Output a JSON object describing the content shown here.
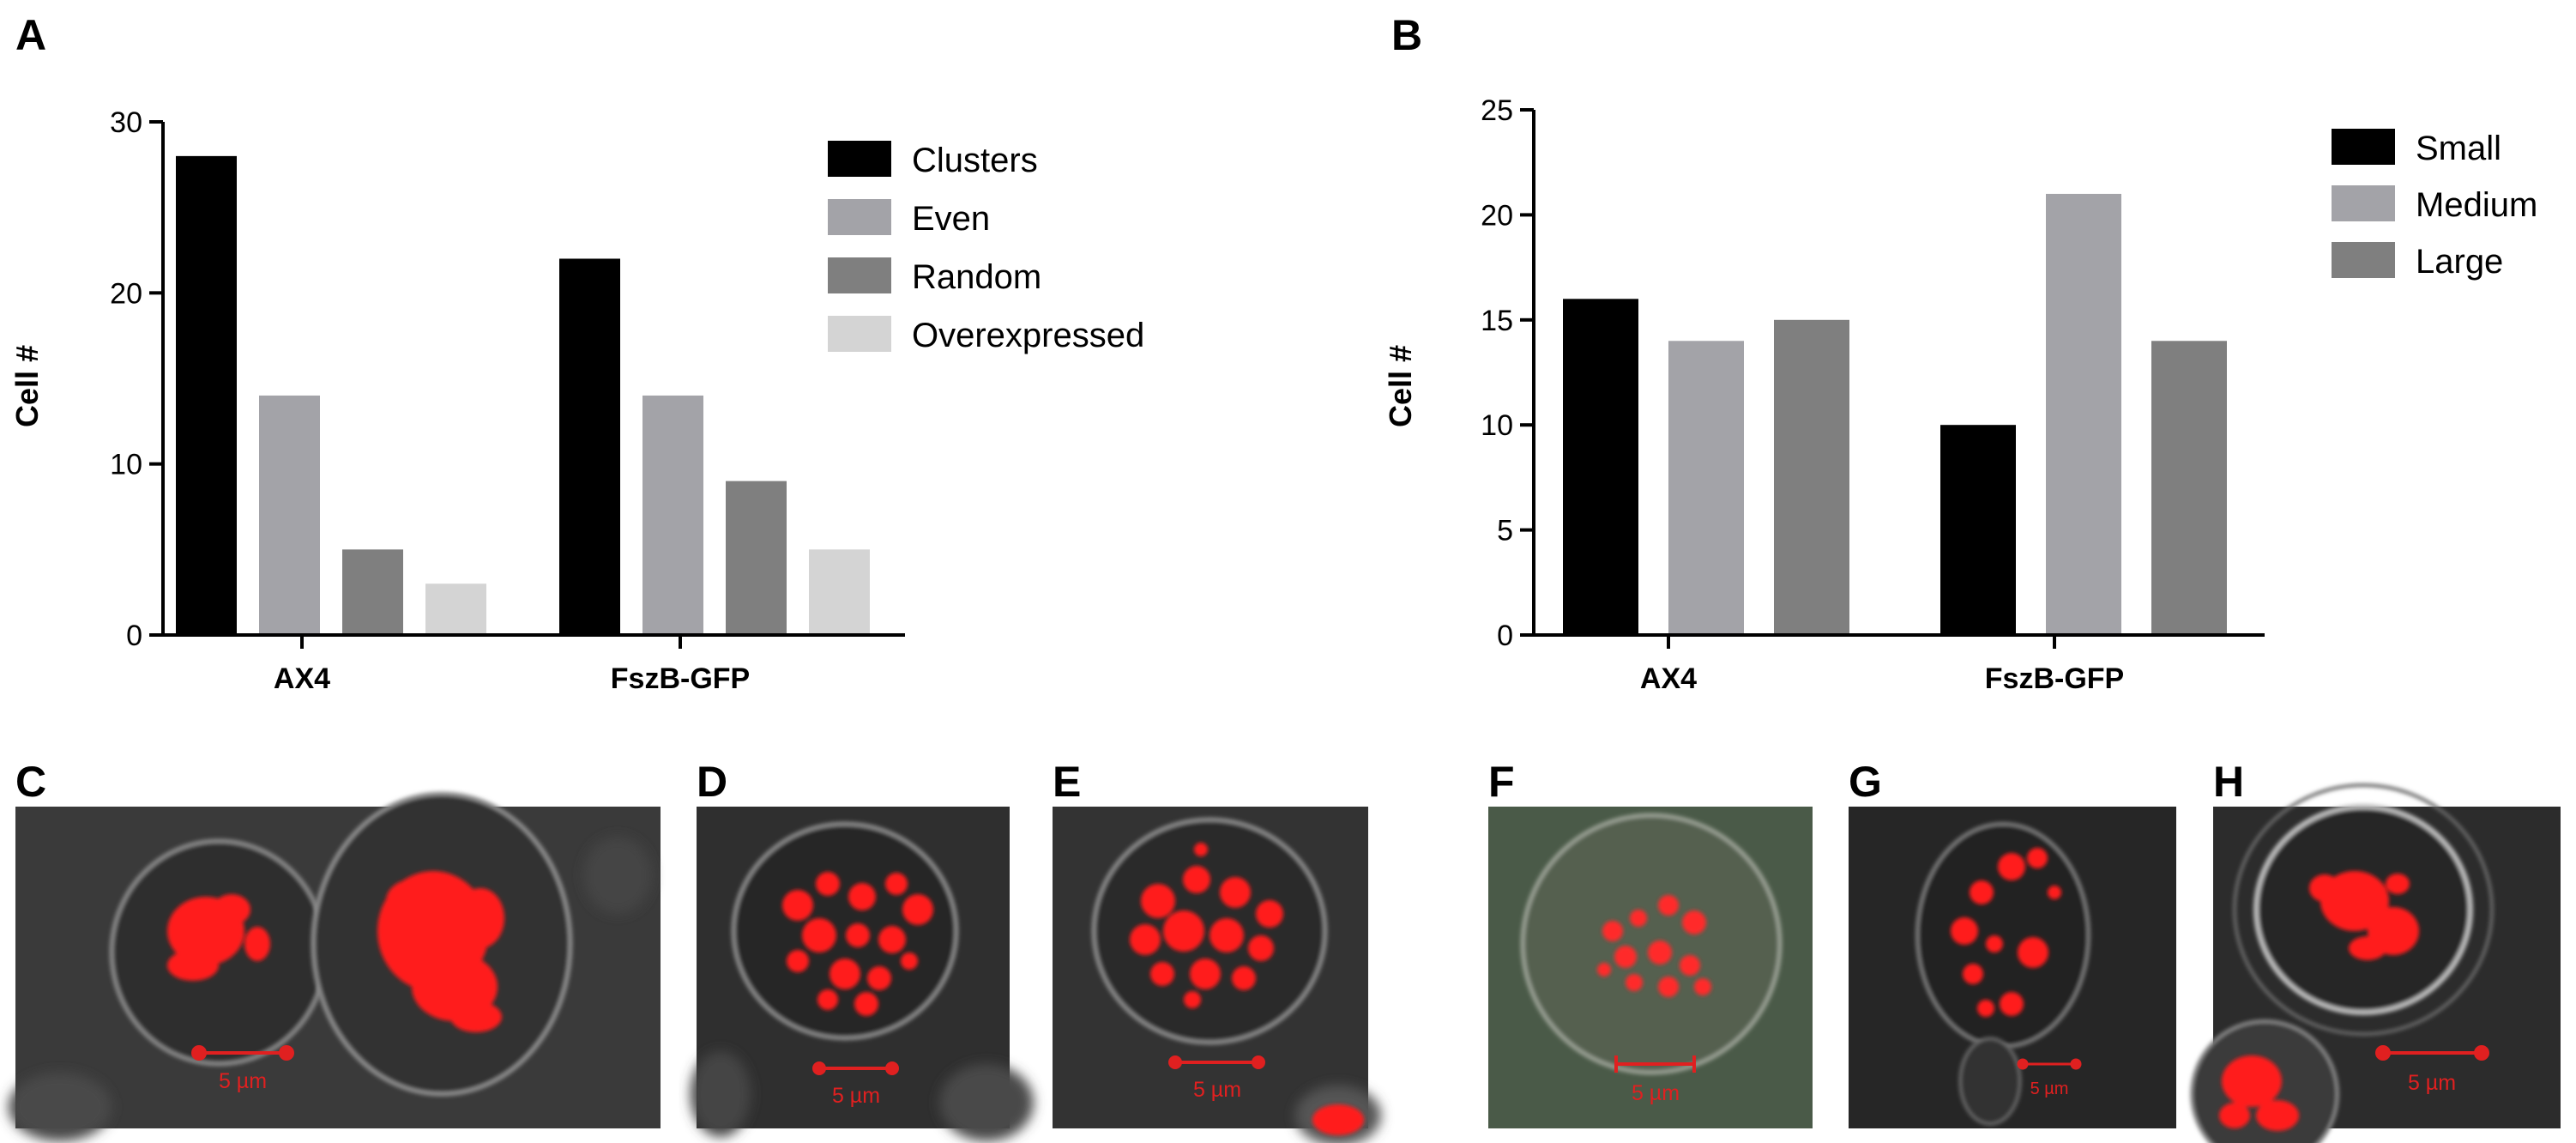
{
  "chart_data": [
    {
      "panel": "A",
      "type": "bar",
      "categories": [
        "AX4",
        "FszB-GFP"
      ],
      "series": [
        {
          "name": "Clusters",
          "values": [
            28,
            22
          ]
        },
        {
          "name": "Even",
          "values": [
            14,
            14
          ]
        },
        {
          "name": "Random",
          "values": [
            5,
            9
          ]
        },
        {
          "name": "Overexpressed",
          "values": [
            3,
            5
          ]
        }
      ],
      "title": "",
      "xlabel": "",
      "ylabel": "Cell #",
      "ylim": [
        0,
        30
      ],
      "yticks": [
        "0",
        "10",
        "20",
        "30"
      ],
      "colors": [
        "#000000",
        "#a3a3a8",
        "#7f7f7f",
        "#d4d4d4"
      ],
      "legend_position": "top-right",
      "grid": false
    },
    {
      "panel": "B",
      "type": "bar",
      "categories": [
        "AX4",
        "FszB-GFP"
      ],
      "series": [
        {
          "name": "Small",
          "values": [
            16,
            10
          ]
        },
        {
          "name": "Medium",
          "values": [
            14,
            21
          ]
        },
        {
          "name": "Large",
          "values": [
            15,
            14
          ]
        }
      ],
      "title": "",
      "xlabel": "",
      "ylabel": "Cell #",
      "ylim": [
        0,
        25
      ],
      "yticks": [
        "0",
        "5",
        "10",
        "15",
        "20",
        "25"
      ],
      "colors": [
        "#000000",
        "#a3a3a8",
        "#7f7f7f"
      ],
      "legend_position": "top-right",
      "grid": false
    }
  ],
  "micrographs": [
    {
      "panel": "C",
      "scale_label": "5 µm"
    },
    {
      "panel": "D",
      "scale_label": "5 µm"
    },
    {
      "panel": "E",
      "scale_label": "5 µm"
    },
    {
      "panel": "F",
      "scale_label": "5 µm"
    },
    {
      "panel": "G",
      "scale_label": "5 µm"
    },
    {
      "panel": "H",
      "scale_label": "5 µm"
    }
  ]
}
